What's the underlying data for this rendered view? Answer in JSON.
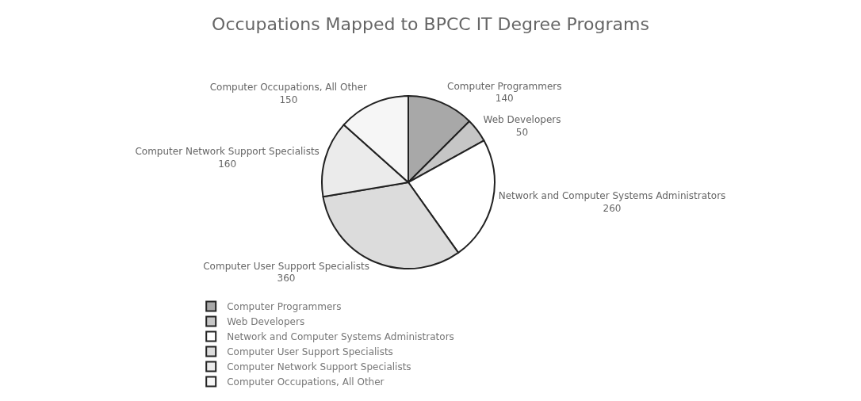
{
  "chart_data": {
    "type": "pie",
    "title": "Occupations Mapped to BPCC IT Degree Programs",
    "categories": [
      "Computer Programmers",
      "Web Developers",
      "Network and Computer Systems Administrators",
      "Computer User Support Specialists",
      "Computer Network Support Specialists",
      "Computer Occupations, All Other"
    ],
    "values": [
      140,
      50,
      260,
      360,
      160,
      150
    ],
    "colors": [
      "#a8a8a8",
      "#c6c6c6",
      "#ffffff",
      "#dcdcdc",
      "#ebebeb",
      "#f6f6f6"
    ],
    "data_labels": true,
    "legend": "bottom"
  }
}
